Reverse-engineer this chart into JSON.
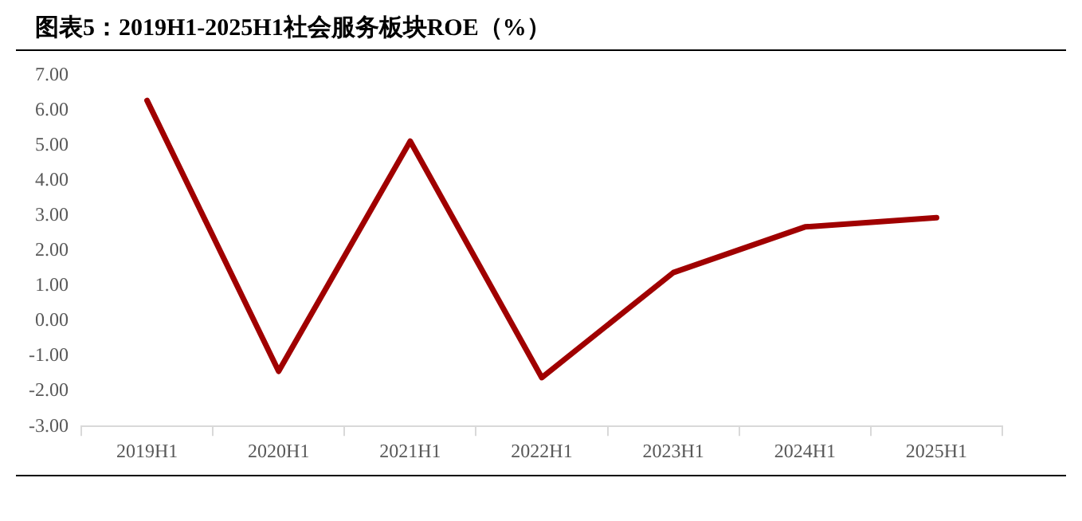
{
  "chart_data": {
    "type": "line",
    "title": "图表5：2019H1-2025H1社会服务板块ROE（%）",
    "categories": [
      "2019H1",
      "2020H1",
      "2021H1",
      "2022H1",
      "2023H1",
      "2024H1",
      "2025H1"
    ],
    "series": [
      {
        "color": "#a00000",
        "values": [
          6.28,
          -1.43,
          5.12,
          -1.61,
          1.38,
          2.68,
          2.94
        ]
      }
    ],
    "ylim": [
      -3,
      7
    ],
    "yticks": [
      {
        "value": -3,
        "label": "-3.00"
      },
      {
        "value": -2,
        "label": "-2.00"
      },
      {
        "value": -1,
        "label": "-1.00"
      },
      {
        "value": 0,
        "label": "0.00"
      },
      {
        "value": 1,
        "label": "1.00"
      },
      {
        "value": 2,
        "label": "2.00"
      },
      {
        "value": 3,
        "label": "3.00"
      },
      {
        "value": 4,
        "label": "4.00"
      },
      {
        "value": 5,
        "label": "5.00"
      },
      {
        "value": 6,
        "label": "6.00"
      },
      {
        "value": 7,
        "label": "7.00"
      }
    ],
    "grid": false,
    "legend": false,
    "marker": "none",
    "line_style": "solid"
  }
}
